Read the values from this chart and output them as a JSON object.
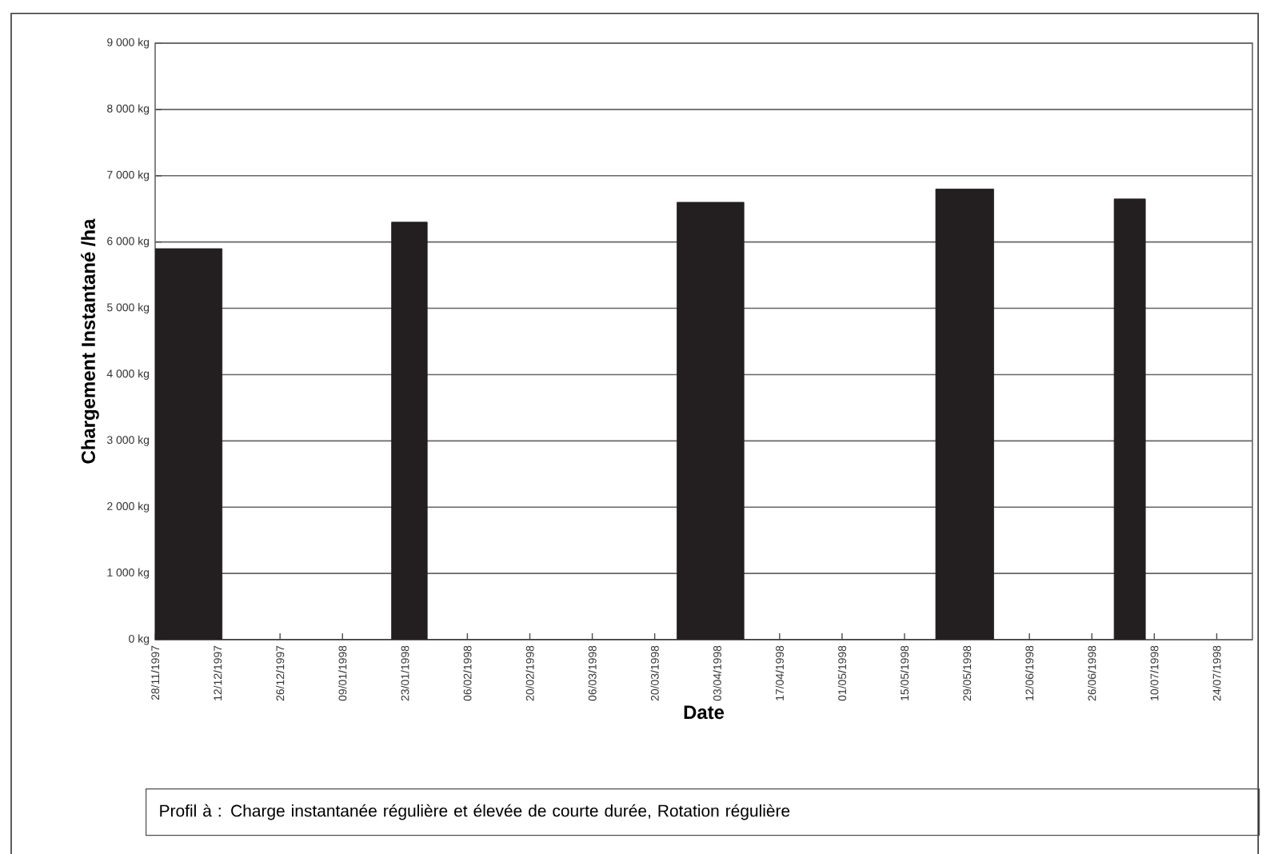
{
  "chart_data": {
    "type": "area",
    "xlabel": "Date",
    "ylabel": "Chargement Instantané /ha",
    "x": [
      "1997-11-28",
      "1997-12-13",
      "1997-12-13",
      "1998-01-20",
      "1998-01-20",
      "1998-01-28",
      "1998-01-28",
      "1998-03-25",
      "1998-03-25",
      "1998-04-09",
      "1998-04-09",
      "1998-05-22",
      "1998-05-22",
      "1998-06-04",
      "1998-06-04",
      "1998-07-01",
      "1998-07-01",
      "1998-07-08",
      "1998-07-08"
    ],
    "series": [
      {
        "color": "#231f20",
        "values": [
          5900,
          5900,
          0,
          0,
          6300,
          6300,
          0,
          0,
          6600,
          6600,
          0,
          0,
          6800,
          6800,
          0,
          0,
          6650,
          6650,
          0
        ]
      }
    ],
    "xlim": [
      "1997-11-28",
      "1998-08-01"
    ],
    "xticks": [
      {
        "value": "1997-11-28",
        "label": "28/11/1997"
      },
      {
        "value": "1997-12-12",
        "label": "12/12/1997"
      },
      {
        "value": "1997-12-26",
        "label": "26/12/1997"
      },
      {
        "value": "1998-01-09",
        "label": "09/01/1998"
      },
      {
        "value": "1998-01-23",
        "label": "23/01/1998"
      },
      {
        "value": "1998-02-06",
        "label": "06/02/1998"
      },
      {
        "value": "1998-02-20",
        "label": "20/02/1998"
      },
      {
        "value": "1998-03-06",
        "label": "06/03/1998"
      },
      {
        "value": "1998-03-20",
        "label": "20/03/1998"
      },
      {
        "value": "1998-04-03",
        "label": "03/04/1998"
      },
      {
        "value": "1998-04-17",
        "label": "17/04/1998"
      },
      {
        "value": "1998-05-01",
        "label": "01/05/1998"
      },
      {
        "value": "1998-05-15",
        "label": "15/05/1998"
      },
      {
        "value": "1998-05-29",
        "label": "29/05/1998"
      },
      {
        "value": "1998-06-12",
        "label": "12/06/1998"
      },
      {
        "value": "1998-06-26",
        "label": "26/06/1998"
      },
      {
        "value": "1998-07-10",
        "label": "10/07/1998"
      },
      {
        "value": "1998-07-24",
        "label": "24/07/1998"
      }
    ],
    "ylim": [
      0,
      9000
    ],
    "yticks": [
      {
        "value": 0,
        "label": "0 kg"
      },
      {
        "value": 1000,
        "label": "1 000 kg"
      },
      {
        "value": 2000,
        "label": "2 000 kg"
      },
      {
        "value": 3000,
        "label": "3 000 kg"
      },
      {
        "value": 4000,
        "label": "4 000 kg"
      },
      {
        "value": 5000,
        "label": "5 000 kg"
      },
      {
        "value": 6000,
        "label": "6 000 kg"
      },
      {
        "value": 7000,
        "label": "7 000 kg"
      },
      {
        "value": 8000,
        "label": "8 000 kg"
      },
      {
        "value": 9000,
        "label": "9 000 kg"
      }
    ],
    "grid": "y",
    "annotations": [
      "Profil à : Charge instantanée régulière et élevée de courte durée, Rotation régulière"
    ]
  }
}
